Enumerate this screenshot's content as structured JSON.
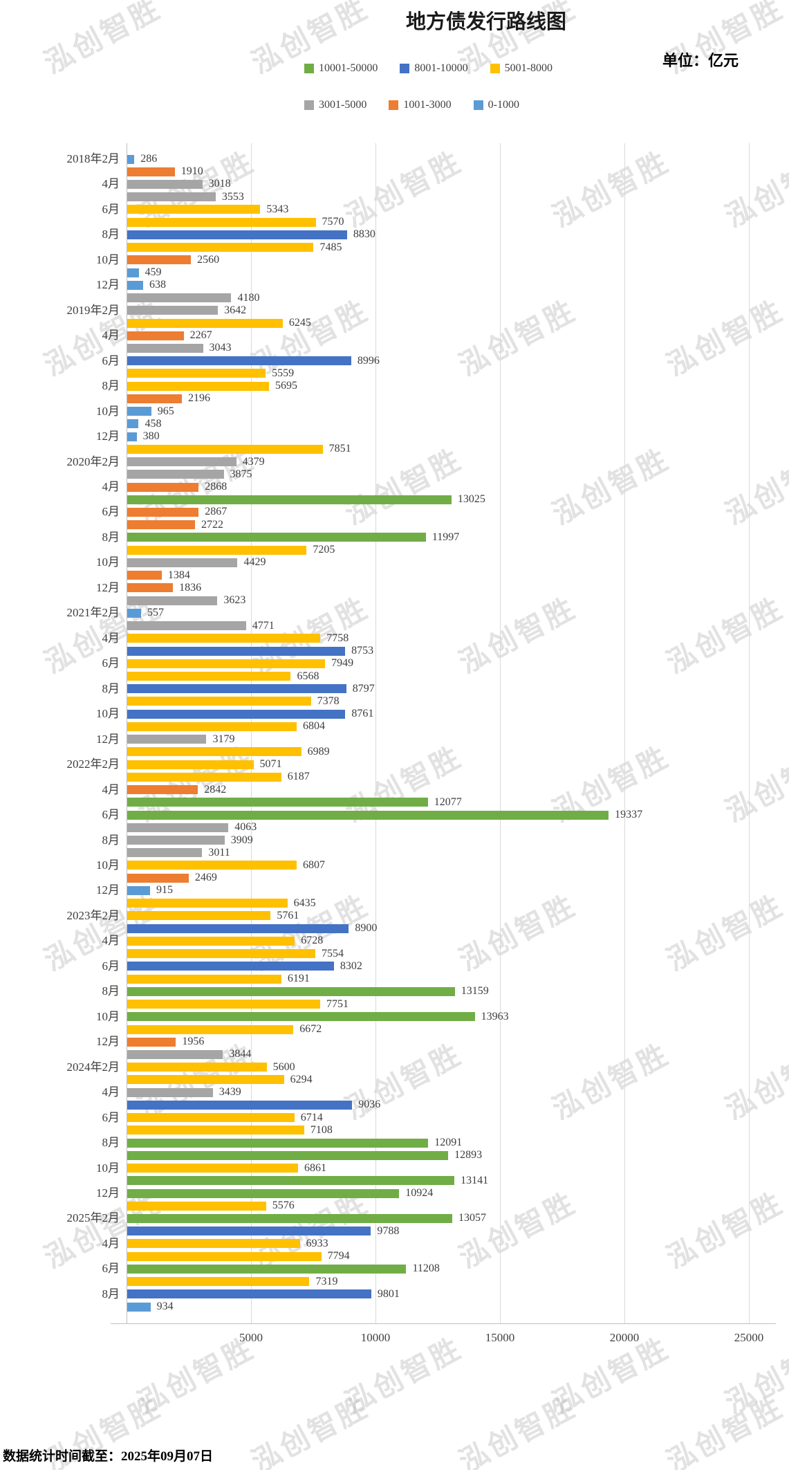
{
  "title": "地方债发行路线图",
  "unit_label": "单位：亿元",
  "footer": "数据统计时间截至：2025年09月07日",
  "watermark": "泓创智胜",
  "legend": [
    {
      "label": "10001-50000",
      "color": "#70AD47",
      "min": 10001,
      "max": 50000
    },
    {
      "label": "8001-10000",
      "color": "#4472C4",
      "min": 8001,
      "max": 10000
    },
    {
      "label": "5001-8000",
      "color": "#FFC000",
      "min": 5001,
      "max": 8000
    },
    {
      "label": "3001-5000",
      "color": "#A5A5A5",
      "min": 3001,
      "max": 5000
    },
    {
      "label": "1001-3000",
      "color": "#ED7D31",
      "min": 1001,
      "max": 3000
    },
    {
      "label": "0-1000",
      "color": "#5B9BD5",
      "min": 0,
      "max": 1000
    }
  ],
  "chart_data": {
    "type": "bar",
    "orientation": "horizontal",
    "title": "地方债发行路线图",
    "unit": "亿元",
    "x_ticks": [
      5000,
      10000,
      15000,
      20000,
      25000
    ],
    "xlim": [
      0,
      26000
    ],
    "grid": true,
    "bars": [
      {
        "label": "2018年2月",
        "value": 286
      },
      {
        "label": "",
        "value": 1910
      },
      {
        "label": "4月",
        "value": 3018
      },
      {
        "label": "",
        "value": 3553
      },
      {
        "label": "6月",
        "value": 5343
      },
      {
        "label": "",
        "value": 7570
      },
      {
        "label": "8月",
        "value": 8830
      },
      {
        "label": "",
        "value": 7485
      },
      {
        "label": "10月",
        "value": 2560
      },
      {
        "label": "",
        "value": 459
      },
      {
        "label": "12月",
        "value": 638
      },
      {
        "label": "",
        "value": 4180
      },
      {
        "label": "2019年2月",
        "value": 3642
      },
      {
        "label": "",
        "value": 6245
      },
      {
        "label": "4月",
        "value": 2267
      },
      {
        "label": "",
        "value": 3043
      },
      {
        "label": "6月",
        "value": 8996
      },
      {
        "label": "",
        "value": 5559
      },
      {
        "label": "8月",
        "value": 5695
      },
      {
        "label": "",
        "value": 2196
      },
      {
        "label": "10月",
        "value": 965
      },
      {
        "label": "",
        "value": 458
      },
      {
        "label": "12月",
        "value": 380
      },
      {
        "label": "",
        "value": 7851
      },
      {
        "label": "2020年2月",
        "value": 4379
      },
      {
        "label": "",
        "value": 3875
      },
      {
        "label": "4月",
        "value": 2868
      },
      {
        "label": "",
        "value": 13025
      },
      {
        "label": "6月",
        "value": 2867
      },
      {
        "label": "",
        "value": 2722
      },
      {
        "label": "8月",
        "value": 11997
      },
      {
        "label": "",
        "value": 7205
      },
      {
        "label": "10月",
        "value": 4429
      },
      {
        "label": "",
        "value": 1384
      },
      {
        "label": "12月",
        "value": 1836
      },
      {
        "label": "",
        "value": 3623
      },
      {
        "label": "2021年2月",
        "value": 557
      },
      {
        "label": "",
        "value": 4771
      },
      {
        "label": "4月",
        "value": 7758
      },
      {
        "label": "",
        "value": 8753
      },
      {
        "label": "6月",
        "value": 7949
      },
      {
        "label": "",
        "value": 6568
      },
      {
        "label": "8月",
        "value": 8797
      },
      {
        "label": "",
        "value": 7378
      },
      {
        "label": "10月",
        "value": 8761
      },
      {
        "label": "",
        "value": 6804
      },
      {
        "label": "12月",
        "value": 3179
      },
      {
        "label": "",
        "value": 6989
      },
      {
        "label": "2022年2月",
        "value": 5071
      },
      {
        "label": "",
        "value": 6187
      },
      {
        "label": "4月",
        "value": 2842
      },
      {
        "label": "",
        "value": 12077
      },
      {
        "label": "6月",
        "value": 19337
      },
      {
        "label": "",
        "value": 4063
      },
      {
        "label": "8月",
        "value": 3909
      },
      {
        "label": "",
        "value": 3011
      },
      {
        "label": "10月",
        "value": 6807
      },
      {
        "label": "",
        "value": 2469
      },
      {
        "label": "12月",
        "value": 915
      },
      {
        "label": "",
        "value": 6435
      },
      {
        "label": "2023年2月",
        "value": 5761
      },
      {
        "label": "",
        "value": 8900
      },
      {
        "label": "4月",
        "value": 6728
      },
      {
        "label": "",
        "value": 7554
      },
      {
        "label": "6月",
        "value": 8302
      },
      {
        "label": "",
        "value": 6191
      },
      {
        "label": "8月",
        "value": 13159
      },
      {
        "label": "",
        "value": 7751
      },
      {
        "label": "10月",
        "value": 13963
      },
      {
        "label": "",
        "value": 6672
      },
      {
        "label": "12月",
        "value": 1956
      },
      {
        "label": "",
        "value": 3844
      },
      {
        "label": "2024年2月",
        "value": 5600
      },
      {
        "label": "",
        "value": 6294
      },
      {
        "label": "4月",
        "value": 3439
      },
      {
        "label": "",
        "value": 9036
      },
      {
        "label": "6月",
        "value": 6714
      },
      {
        "label": "",
        "value": 7108
      },
      {
        "label": "8月",
        "value": 12091
      },
      {
        "label": "",
        "value": 12893
      },
      {
        "label": "10月",
        "value": 6861
      },
      {
        "label": "",
        "value": 13141
      },
      {
        "label": "12月",
        "value": 10924
      },
      {
        "label": "",
        "value": 5576
      },
      {
        "label": "2025年2月",
        "value": 13057
      },
      {
        "label": "",
        "value": 9788
      },
      {
        "label": "4月",
        "value": 6933
      },
      {
        "label": "",
        "value": 7794
      },
      {
        "label": "6月",
        "value": 11208
      },
      {
        "label": "",
        "value": 7319
      },
      {
        "label": "8月",
        "value": 9801
      },
      {
        "label": "",
        "value": 934
      }
    ]
  }
}
